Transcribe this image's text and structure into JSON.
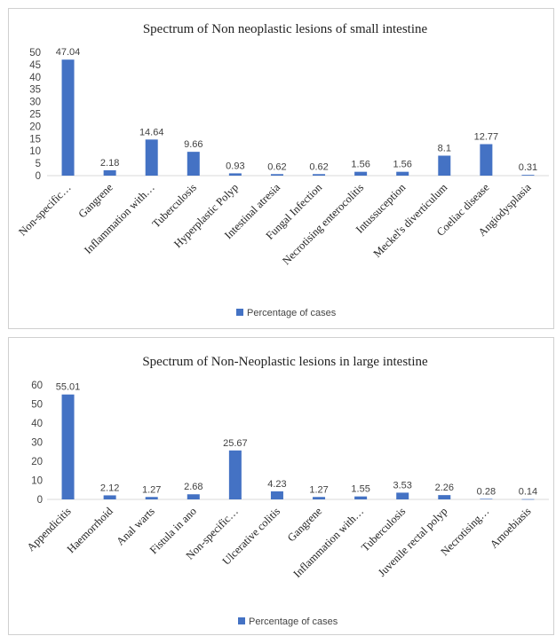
{
  "chart_data": [
    {
      "type": "bar",
      "title": "Spectrum of Non neoplastic lesions of small intestine",
      "categories": [
        "Non-specific…",
        "Gangrene",
        "Inflammation with…",
        "Tuberculosis",
        "Hyperplastic Polyp",
        "Intestinal atresia",
        "Fungal Infection",
        "Necrotising enterocolitis",
        "Intussuception",
        "Meckel's diverticulum",
        "Coeliac disease",
        "Angiodysplasia"
      ],
      "series": [
        {
          "name": "Percentage of cases",
          "values": [
            47.04,
            2.18,
            14.64,
            9.66,
            0.93,
            0.62,
            0.62,
            1.56,
            1.56,
            8.1,
            12.77,
            0.31
          ]
        }
      ],
      "data_labels": [
        "47.04",
        "2.18",
        "14.64",
        "9.66",
        "0.93",
        "0.62",
        "0.62",
        "1.56",
        "1.56",
        "8.1",
        "12.77",
        "0.31"
      ],
      "ylim": [
        0,
        50
      ],
      "yticks": [
        0,
        5,
        10,
        15,
        20,
        25,
        30,
        35,
        40,
        45,
        50
      ],
      "xlabel": "",
      "ylabel": "",
      "grid": false,
      "legend": "bottom",
      "color": "#4472C4"
    },
    {
      "type": "bar",
      "title": "Spectrum of Non-Neoplastic lesions in large intestine",
      "categories": [
        "Appendicitis",
        "Haemorrhoid",
        "Anal warts",
        "Fistula in ano",
        "Non-specific…",
        "Ulcerative colitis",
        "Gangrene",
        "Inflammation with…",
        "Tuberculosis",
        "Juvenile rectal polyp",
        "Necrotising…",
        "Amoebiasis"
      ],
      "series": [
        {
          "name": "Percentage of cases",
          "values": [
            55.01,
            2.12,
            1.27,
            2.68,
            25.67,
            4.23,
            1.27,
            1.55,
            3.53,
            2.26,
            0.28,
            0.14
          ]
        }
      ],
      "data_labels": [
        "55.01",
        "2.12",
        "1.27",
        "2.68",
        "25.67",
        "4.23",
        "1.27",
        "1.55",
        "3.53",
        "2.26",
        "0.28",
        "0.14"
      ],
      "ylim": [
        0,
        60
      ],
      "yticks": [
        0,
        10,
        20,
        30,
        40,
        50,
        60
      ],
      "xlabel": "",
      "ylabel": "",
      "grid": false,
      "legend": "bottom",
      "color": "#4472C4"
    }
  ]
}
